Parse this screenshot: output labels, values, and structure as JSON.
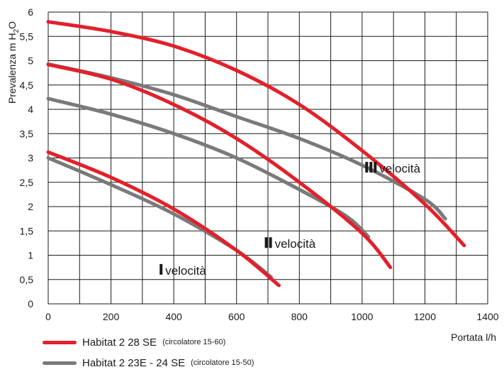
{
  "chart_data": {
    "type": "line",
    "title": "",
    "xlabel": "Portata l/h",
    "ylabel": "Prevalenza m H2O",
    "ylabel_parts": {
      "before": "Prevalenza m H",
      "sub": "2",
      "after": "O"
    },
    "xlim": [
      0,
      1400
    ],
    "ylim": [
      0,
      6
    ],
    "x_ticks": [
      "0",
      "200",
      "400",
      "600",
      "800",
      "1000",
      "1200",
      "1400"
    ],
    "y_ticks": [
      "0",
      "0,5",
      "1",
      "1,5",
      "2",
      "2,5",
      "3",
      "3,5",
      "4",
      "4,5",
      "5",
      "5,5",
      "6"
    ],
    "grid": true,
    "series": [
      {
        "name": "Habitat 2  28 SE",
        "note": "(circolatore 15-60)",
        "color": "#e3202a",
        "speed": "I",
        "points": [
          [
            0,
            3.12
          ],
          [
            200,
            2.6
          ],
          [
            400,
            1.95
          ],
          [
            600,
            1.1
          ],
          [
            735,
            0.38
          ]
        ]
      },
      {
        "name": "Habitat 2  28 SE",
        "note": "(circolatore 15-60)",
        "color": "#e3202a",
        "speed": "II",
        "points": [
          [
            0,
            4.92
          ],
          [
            200,
            4.62
          ],
          [
            400,
            4.1
          ],
          [
            600,
            3.4
          ],
          [
            800,
            2.5
          ],
          [
            1000,
            1.45
          ],
          [
            1090,
            0.75
          ]
        ]
      },
      {
        "name": "Habitat 2  28 SE",
        "note": "(circolatore 15-60)",
        "color": "#e3202a",
        "speed": "III",
        "points": [
          [
            0,
            5.8
          ],
          [
            200,
            5.6
          ],
          [
            400,
            5.3
          ],
          [
            600,
            4.8
          ],
          [
            800,
            4.1
          ],
          [
            1000,
            3.15
          ],
          [
            1200,
            2.05
          ],
          [
            1325,
            1.2
          ]
        ]
      },
      {
        "name": "Habitat 2  23E - 24 SE",
        "note": "(circolatore 15-50)",
        "color": "#7a7a7a",
        "speed": "I",
        "points": [
          [
            0,
            3.0
          ],
          [
            200,
            2.45
          ],
          [
            400,
            1.85
          ],
          [
            600,
            1.1
          ],
          [
            710,
            0.55
          ]
        ]
      },
      {
        "name": "Habitat 2  23E - 24 SE",
        "note": "(circolatore 15-50)",
        "color": "#7a7a7a",
        "speed": "II",
        "points": [
          [
            0,
            4.22
          ],
          [
            200,
            3.9
          ],
          [
            400,
            3.5
          ],
          [
            600,
            3.0
          ],
          [
            800,
            2.35
          ],
          [
            950,
            1.8
          ],
          [
            1020,
            1.38
          ]
        ]
      },
      {
        "name": "Habitat 2  23E - 24 SE",
        "note": "(circolatore 15-50)",
        "color": "#7a7a7a",
        "speed": "III",
        "points": [
          [
            0,
            4.93
          ],
          [
            200,
            4.65
          ],
          [
            400,
            4.3
          ],
          [
            600,
            3.85
          ],
          [
            800,
            3.4
          ],
          [
            1000,
            2.85
          ],
          [
            1200,
            2.15
          ],
          [
            1265,
            1.75
          ]
        ]
      }
    ],
    "annotations": [
      {
        "roman": "I",
        "text": "velocità",
        "x": 355,
        "y": 0.6
      },
      {
        "roman": "II",
        "text": "velocità",
        "x": 690,
        "y": 1.15
      },
      {
        "roman": "III",
        "text": "velocità",
        "x": 1010,
        "y": 2.7
      }
    ]
  },
  "legend": [
    {
      "name": "Habitat 2  28 SE",
      "note": "(circolatore 15-60)",
      "color": "#e3202a"
    },
    {
      "name": "Habitat 2  23E - 24 SE",
      "note": "(circolatore 15-50)",
      "color": "#7a7a7a"
    }
  ],
  "colors": {
    "grid": "#1a1a1a",
    "plot_background": "#ffffff",
    "text": "#1a1a1a"
  }
}
